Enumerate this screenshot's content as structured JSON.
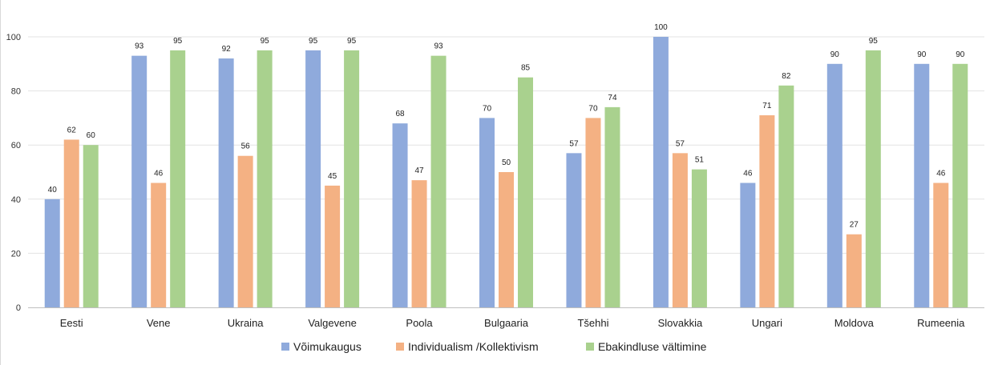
{
  "chart_data": {
    "type": "bar",
    "categories": [
      "Eesti",
      "Vene",
      "Ukraina",
      "Valgevene",
      "Poola",
      "Bulgaaria",
      "Tšehhi",
      "Slovakkia",
      "Ungari",
      "Moldova",
      "Rumeenia"
    ],
    "series": [
      {
        "name": "Võimukaugus",
        "color": "#8faadc",
        "values": [
          40,
          93,
          92,
          95,
          68,
          70,
          57,
          100,
          46,
          90,
          90
        ]
      },
      {
        "name": "Individualism /Kollektivism",
        "color": "#f4b183",
        "values": [
          62,
          46,
          56,
          45,
          47,
          50,
          70,
          57,
          71,
          27,
          46
        ]
      },
      {
        "name": "Ebakindluse vältimine",
        "color": "#a9d18e",
        "values": [
          60,
          95,
          95,
          95,
          93,
          85,
          74,
          51,
          82,
          95,
          90
        ]
      }
    ],
    "yticks": [
      0,
      20,
      40,
      60,
      80,
      100
    ],
    "ylim": [
      0,
      100
    ],
    "grid": true,
    "legend_position": "bottom",
    "title": "",
    "xlabel": "",
    "ylabel": ""
  }
}
